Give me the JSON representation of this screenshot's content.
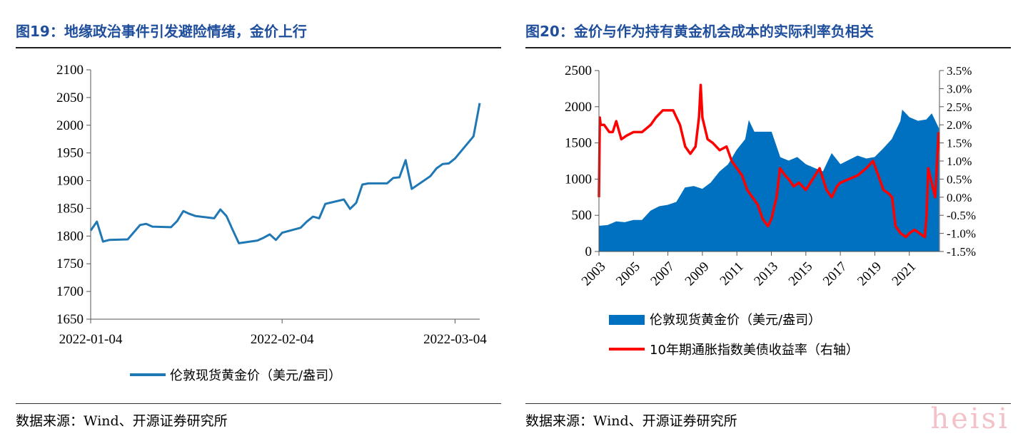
{
  "left": {
    "title": "图19：地缘政治事件引发避险情绪，金价上行",
    "source": "数据来源：Wind、开源证券研究所"
  },
  "right": {
    "title": "图20：金价与作为持有黄金机会成本的实际利率负相关",
    "source": "数据来源：Wind、开源证券研究所"
  },
  "watermark": "heisi",
  "colors": {
    "gold_line": "#1f77b4",
    "gold_area": "#0070c0",
    "yield_line": "#ff0000",
    "title": "#1f4e9c"
  },
  "chart_data": [
    {
      "type": "line",
      "title": "",
      "xlabel": "",
      "ylabel": "",
      "ylim": [
        1650,
        2100
      ],
      "yticks": [
        1650,
        1700,
        1750,
        1800,
        1850,
        1900,
        1950,
        2000,
        2050,
        2100
      ],
      "xtick_labels": [
        "2022-01-04",
        "2022-02-04",
        "2022-03-04"
      ],
      "xlim": [
        "2022-01-04",
        "2022-03-08"
      ],
      "legend": "bottom",
      "grid": false,
      "series": [
        {
          "name": "伦敦现货黄金价（美元/盎司）",
          "x": [
            "2022-01-04",
            "2022-01-05",
            "2022-01-06",
            "2022-01-07",
            "2022-01-10",
            "2022-01-11",
            "2022-01-12",
            "2022-01-13",
            "2022-01-14",
            "2022-01-17",
            "2022-01-18",
            "2022-01-19",
            "2022-01-20",
            "2022-01-21",
            "2022-01-24",
            "2022-01-25",
            "2022-01-26",
            "2022-01-27",
            "2022-01-28",
            "2022-01-31",
            "2022-02-01",
            "2022-02-02",
            "2022-02-03",
            "2022-02-04",
            "2022-02-07",
            "2022-02-08",
            "2022-02-09",
            "2022-02-10",
            "2022-02-11",
            "2022-02-14",
            "2022-02-15",
            "2022-02-16",
            "2022-02-17",
            "2022-02-18",
            "2022-02-21",
            "2022-02-22",
            "2022-02-23",
            "2022-02-24",
            "2022-02-25",
            "2022-02-28",
            "2022-03-01",
            "2022-03-02",
            "2022-03-03",
            "2022-03-04",
            "2022-03-07",
            "2022-03-08"
          ],
          "values": [
            1810,
            1826,
            1790,
            1793,
            1794,
            1807,
            1820,
            1822,
            1817,
            1816,
            1827,
            1845,
            1840,
            1836,
            1832,
            1848,
            1836,
            1811,
            1787,
            1792,
            1797,
            1803,
            1793,
            1806,
            1815,
            1826,
            1835,
            1832,
            1858,
            1866,
            1849,
            1860,
            1893,
            1895,
            1895,
            1905,
            1906,
            1937,
            1885,
            1908,
            1922,
            1930,
            1931,
            1940,
            1980,
            2040
          ]
        }
      ]
    },
    {
      "type": "area",
      "title": "",
      "xlabel": "",
      "ylabel": "",
      "ylabel_right": "",
      "ylim": [
        0,
        2500
      ],
      "ylim_right": [
        -1.5,
        3.5
      ],
      "yticks": [
        0,
        500,
        1000,
        1500,
        2000,
        2500
      ],
      "yticks_right": [
        "-1.5%",
        "-1.0%",
        "-0.5%",
        "0.0%",
        "0.5%",
        "1.0%",
        "1.5%",
        "2.0%",
        "2.5%",
        "3.0%",
        "3.5%"
      ],
      "xtick_labels": [
        "2003",
        "2005",
        "2007",
        "2009",
        "2011",
        "2013",
        "2015",
        "2017",
        "2019",
        "2021"
      ],
      "xlim": [
        2003,
        2022.75
      ],
      "legend": "bottom",
      "grid": false,
      "series": [
        {
          "name": "伦敦现货黄金价（美元/盎司）",
          "type": "area",
          "axis": "left",
          "x": [
            2003.0,
            2003.5,
            2004.0,
            2004.5,
            2005.0,
            2005.5,
            2006.0,
            2006.5,
            2007.0,
            2007.5,
            2008.0,
            2008.5,
            2009.0,
            2009.5,
            2010.0,
            2010.5,
            2011.0,
            2011.5,
            2011.7,
            2012.0,
            2012.5,
            2013.0,
            2013.5,
            2014.0,
            2014.5,
            2015.0,
            2015.5,
            2016.0,
            2016.5,
            2017.0,
            2017.5,
            2018.0,
            2018.5,
            2019.0,
            2019.5,
            2020.0,
            2020.5,
            2020.6,
            2021.0,
            2021.5,
            2022.0,
            2022.3,
            2022.7
          ],
          "values": [
            350,
            360,
            410,
            400,
            430,
            430,
            560,
            620,
            640,
            680,
            880,
            900,
            860,
            950,
            1100,
            1200,
            1400,
            1550,
            1800,
            1650,
            1650,
            1650,
            1300,
            1250,
            1300,
            1200,
            1150,
            1100,
            1350,
            1200,
            1260,
            1320,
            1280,
            1300,
            1420,
            1550,
            1800,
            1950,
            1850,
            1800,
            1820,
            1900,
            1700
          ]
        },
        {
          "name": "10年期通胀指数美债收益率（右轴）",
          "type": "line",
          "axis": "right",
          "x": [
            2003.0,
            2003.05,
            2003.1,
            2003.3,
            2003.6,
            2003.8,
            2004.0,
            2004.3,
            2004.6,
            2005.0,
            2005.5,
            2006.0,
            2006.3,
            2006.7,
            2007.0,
            2007.3,
            2007.7,
            2008.0,
            2008.3,
            2008.6,
            2008.8,
            2008.9,
            2009.0,
            2009.3,
            2009.6,
            2010.0,
            2010.4,
            2010.7,
            2011.0,
            2011.3,
            2011.6,
            2011.9,
            2012.2,
            2012.5,
            2012.8,
            2013.0,
            2013.3,
            2013.5,
            2013.8,
            2014.0,
            2014.3,
            2014.6,
            2015.0,
            2015.4,
            2015.8,
            2016.2,
            2016.5,
            2016.8,
            2017.0,
            2017.5,
            2018.0,
            2018.5,
            2018.9,
            2019.2,
            2019.5,
            2019.8,
            2020.0,
            2020.2,
            2020.5,
            2020.8,
            2021.0,
            2021.3,
            2021.6,
            2021.9,
            2022.0,
            2022.1,
            2022.3,
            2022.5,
            2022.7
          ],
          "values": [
            0.0,
            2.2,
            2.0,
            2.0,
            1.8,
            1.8,
            2.1,
            1.6,
            1.7,
            1.8,
            1.8,
            2.0,
            2.2,
            2.4,
            2.4,
            2.4,
            2.0,
            1.4,
            1.2,
            1.4,
            2.2,
            3.1,
            2.2,
            1.6,
            1.5,
            1.3,
            1.4,
            1.0,
            0.8,
            0.6,
            0.2,
            0.0,
            -0.2,
            -0.6,
            -0.8,
            -0.6,
            0.0,
            0.8,
            0.6,
            0.5,
            0.3,
            0.4,
            0.2,
            0.5,
            0.8,
            0.2,
            0.0,
            0.3,
            0.4,
            0.5,
            0.6,
            0.8,
            1.0,
            0.6,
            0.2,
            0.1,
            0.0,
            -0.8,
            -1.0,
            -1.1,
            -1.0,
            -0.9,
            -1.0,
            -1.1,
            -0.5,
            0.8,
            0.4,
            0.0,
            1.8
          ]
        }
      ]
    }
  ]
}
